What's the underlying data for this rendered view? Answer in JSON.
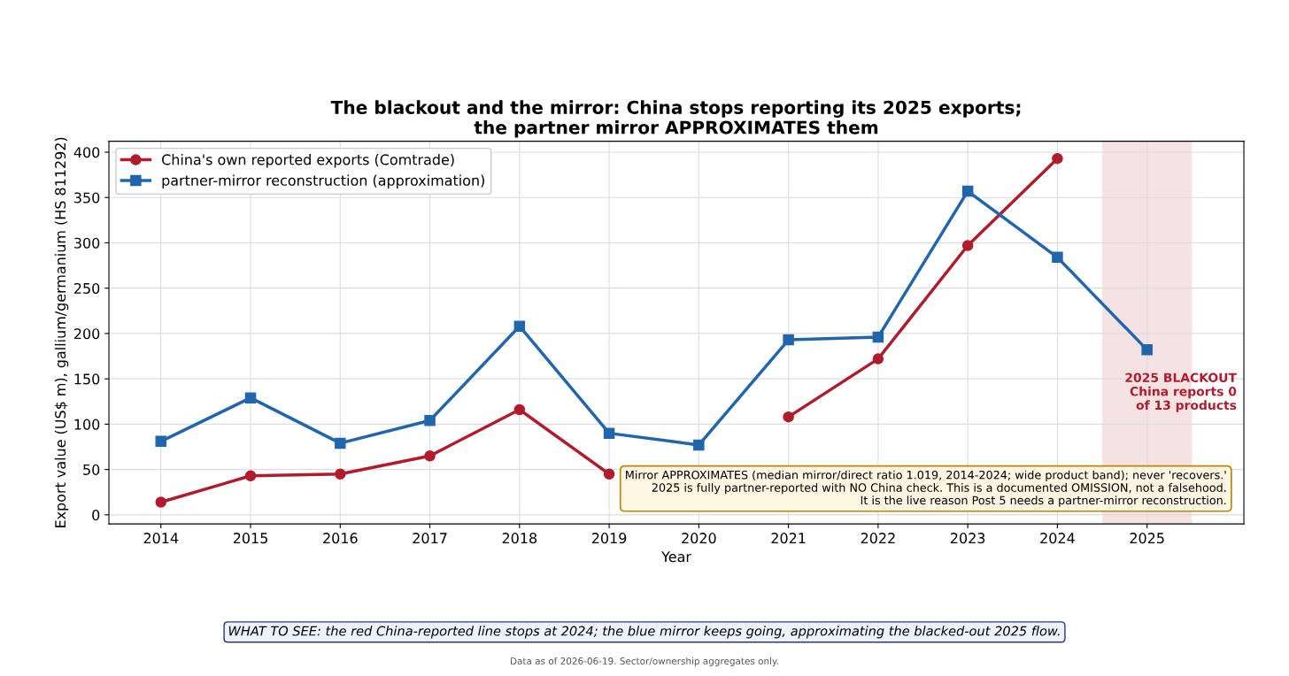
{
  "chart_data": {
    "type": "line",
    "title": "The blackout and the mirror: China stops reporting its 2025 exports;\nthe partner mirror APPROXIMATES them",
    "xlabel": "Year",
    "ylabel": "Export value (US$ m), gallium/germanium (HS 811292)",
    "x": [
      2014,
      2015,
      2016,
      2017,
      2018,
      2019,
      2020,
      2021,
      2022,
      2023,
      2024,
      2025
    ],
    "series": [
      {
        "name": "China's own reported exports (Comtrade)",
        "color": "#b01c2e",
        "marker": "circle",
        "values": [
          14,
          43,
          45,
          65,
          116,
          45,
          null,
          108,
          172,
          297,
          393,
          null
        ]
      },
      {
        "name": "partner-mirror reconstruction (approximation)",
        "color": "#2166ac",
        "marker": "square",
        "values": [
          81,
          129,
          79,
          104,
          208,
          90,
          77,
          193,
          196,
          357,
          284,
          182
        ]
      }
    ],
    "xlim": [
      2013.42,
      2026.08
    ],
    "ylim": [
      -10,
      412
    ],
    "xticks": [
      2014,
      2015,
      2016,
      2017,
      2018,
      2019,
      2020,
      2021,
      2022,
      2023,
      2024,
      2025
    ],
    "yticks": [
      0,
      50,
      100,
      150,
      200,
      250,
      300,
      350,
      400
    ],
    "grid": true,
    "legend": "top left",
    "line_style": "solid",
    "bands": [
      {
        "axis": "x",
        "from": 2024.5,
        "to": 2025.5,
        "label": "2025 BLACKOUT\nChina reports 0\nof 13 products",
        "color": "#f3dcdc"
      }
    ],
    "annotations": [
      "Mirror APPROXIMATES (median mirror/direct ratio 1.019, 2014-2024; wide product band); never 'recovers.'\n2025 is fully partner-reported with NO China check. This is a documented OMISSION, not a falsehood.\nIt is the live reason Post 5 needs a partner-mirror reconstruction.",
      "WHAT TO SEE: the red China-reported line stops at 2024; the blue mirror keeps going, approximating the blacked-out 2025 flow.",
      "Data as of 2026-06-19. Sector/ownership aggregates only."
    ]
  }
}
